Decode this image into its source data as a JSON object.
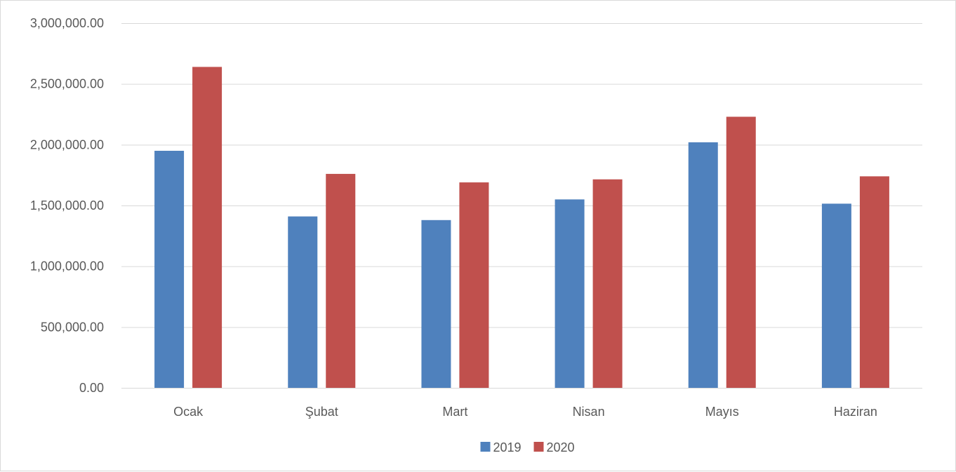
{
  "chart_data": {
    "type": "bar",
    "title": "",
    "xlabel": "",
    "ylabel": "",
    "categories": [
      "Ocak",
      "Şubat",
      "Mart",
      "Nisan",
      "Mayıs",
      "Haziran"
    ],
    "series": [
      {
        "name": "2019",
        "color": "#4f81bd",
        "values": [
          1950000,
          1410000,
          1380000,
          1550000,
          2020000,
          1515000
        ]
      },
      {
        "name": "2020",
        "color": "#c0504d",
        "values": [
          2640000,
          1760000,
          1690000,
          1715000,
          2230000,
          1740000
        ]
      }
    ],
    "ylim": [
      0,
      3000000
    ],
    "yticks": [
      0,
      500000,
      1000000,
      1500000,
      2000000,
      2500000,
      3000000
    ],
    "ytick_labels": [
      "0.00",
      "500,000.00",
      "1,000,000.00",
      "1,500,000.00",
      "2,000,000.00",
      "2,500,000.00",
      "3,000,000.00"
    ],
    "grid": true,
    "gridline_color": "#d9d9d9",
    "legend_position": "bottom"
  }
}
